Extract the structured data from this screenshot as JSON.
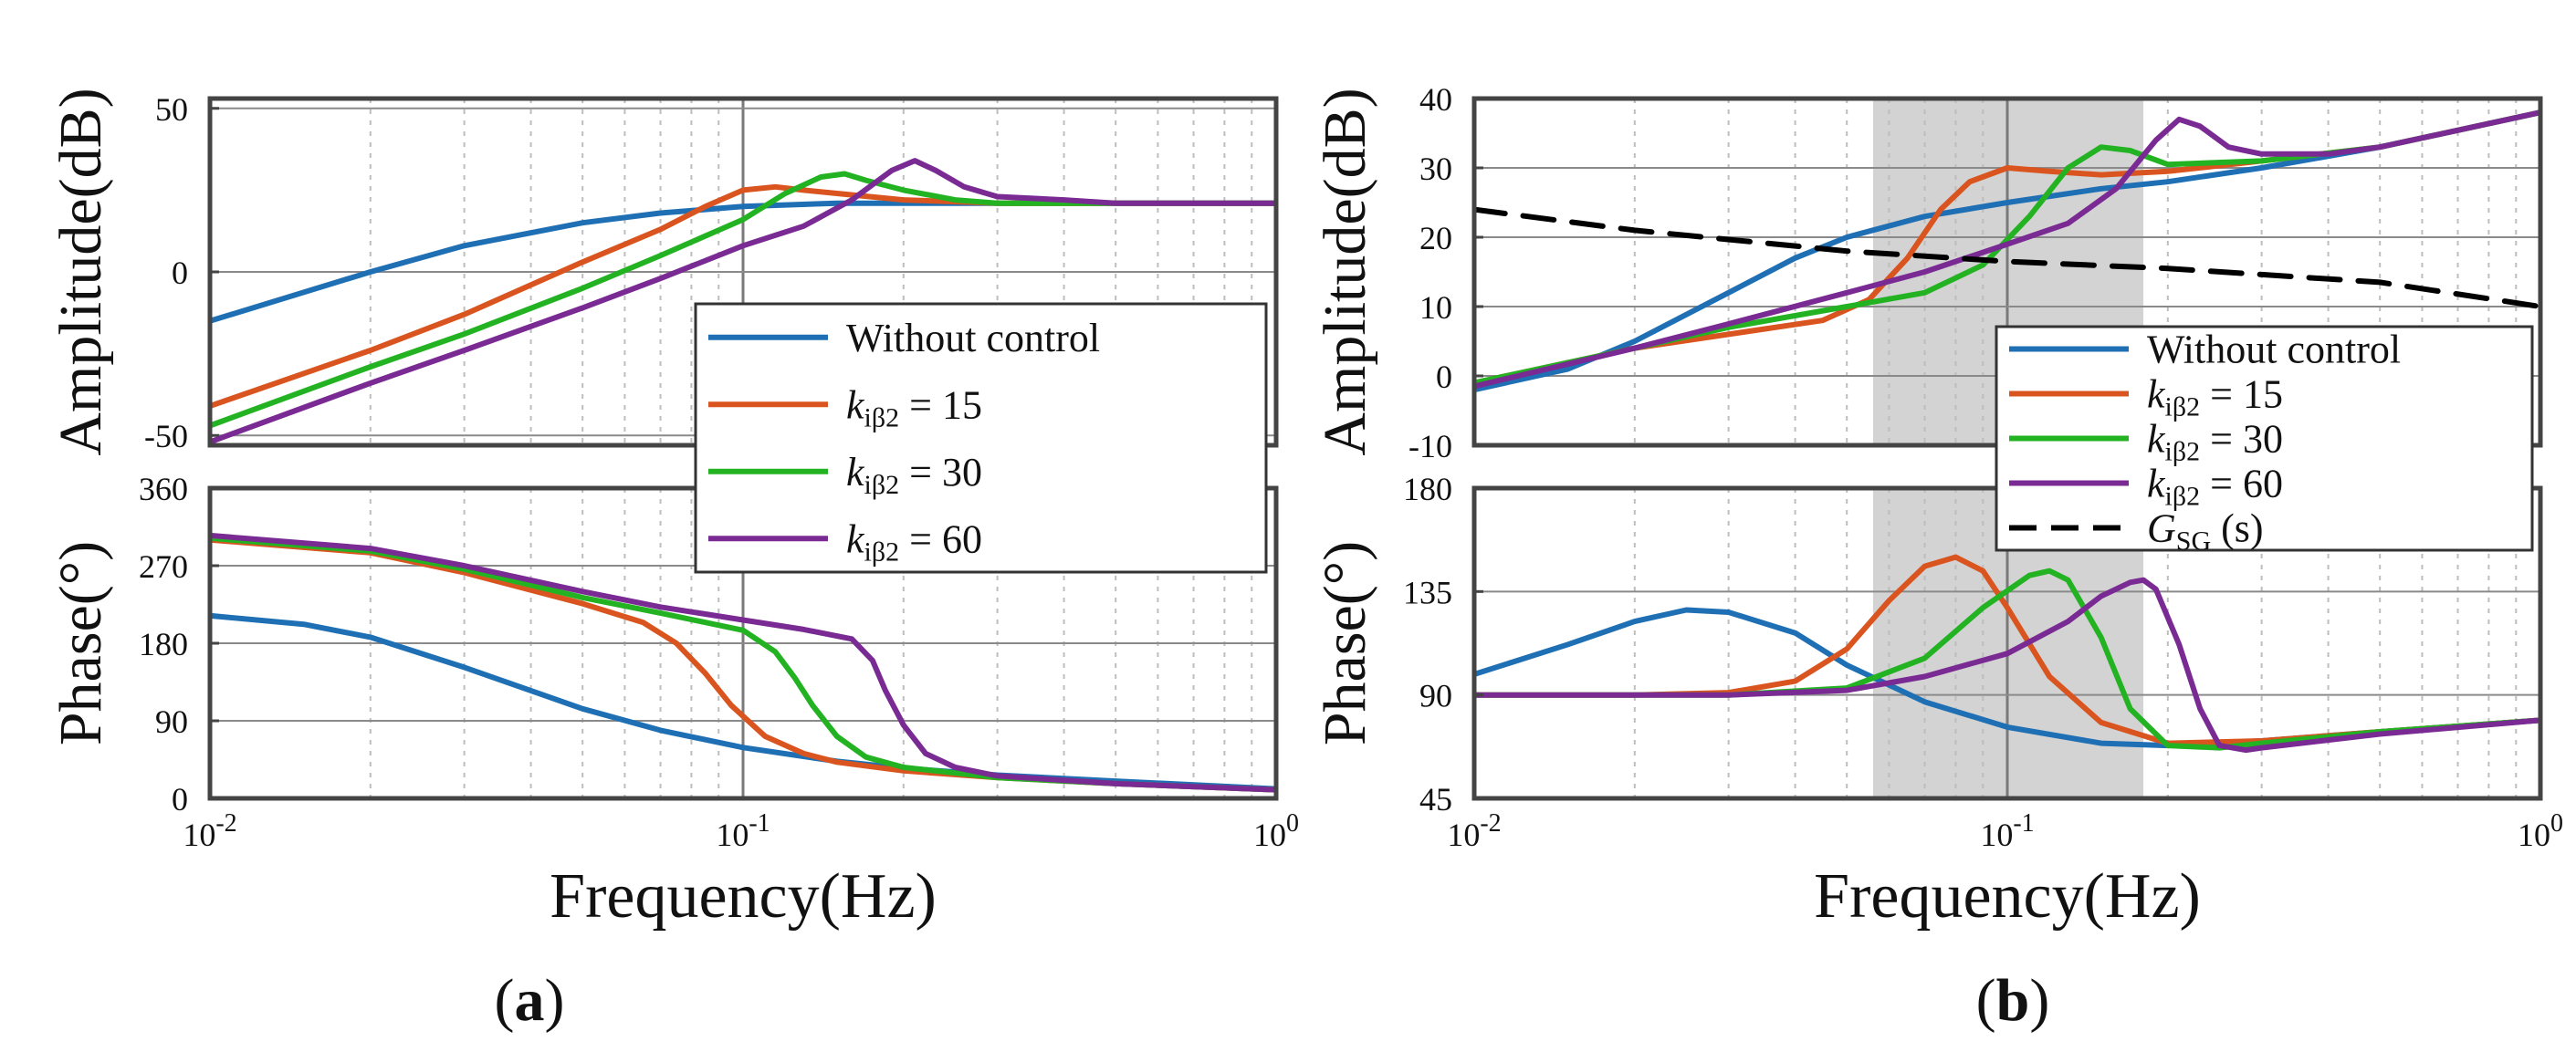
{
  "chart_data": [
    {
      "type": "line",
      "panel_label": "(a)",
      "xlabel": "Frequency(Hz)",
      "xscale": "log",
      "xlim": [
        0.01,
        1
      ],
      "xticklabels": [
        "10-2",
        "10-1",
        "100"
      ],
      "legend": {
        "position": "right-middle",
        "entries": [
          {
            "series": "Without control",
            "color": "#1f6fb4"
          },
          {
            "series": "kiβ2 = 15",
            "color": "#d9541e"
          },
          {
            "series": "kiβ2 = 30",
            "color": "#23b322"
          },
          {
            "series": "kiβ2 = 60",
            "color": "#7a2a93"
          }
        ]
      },
      "subplots": [
        {
          "id": "amplitude",
          "ylabel": "Amplitude(dB)",
          "ylim": [
            -53,
            53
          ],
          "yticks": [
            -50,
            0,
            50
          ],
          "yticklabels": [
            "-50",
            "0",
            "50"
          ],
          "series": [
            {
              "name": "Without control",
              "color": "#1f6fb4",
              "x": [
                0.01,
                0.02,
                0.03,
                0.05,
                0.07,
                0.1,
                0.15,
                0.2,
                0.3,
                0.5,
                1.0
              ],
              "y": [
                -15,
                0,
                8,
                15,
                18,
                20,
                21,
                21,
                21,
                21,
                21
              ]
            },
            {
              "name": "kiβ2 = 15",
              "color": "#d9541e",
              "x": [
                0.01,
                0.02,
                0.03,
                0.05,
                0.07,
                0.085,
                0.1,
                0.115,
                0.13,
                0.15,
                0.2,
                0.3,
                0.5,
                1.0
              ],
              "y": [
                -41,
                -24,
                -13,
                3,
                13,
                20,
                25,
                26,
                25,
                24,
                22,
                21,
                21,
                21
              ]
            },
            {
              "name": "kiβ2 = 30",
              "color": "#23b322",
              "x": [
                0.01,
                0.02,
                0.03,
                0.05,
                0.07,
                0.1,
                0.12,
                0.14,
                0.155,
                0.17,
                0.2,
                0.25,
                0.3,
                0.5,
                1.0
              ],
              "y": [
                -47,
                -29,
                -19,
                -5,
                5,
                16,
                24,
                29,
                30,
                28,
                25,
                22,
                21,
                21,
                21
              ]
            },
            {
              "name": "kiβ2 = 60",
              "color": "#7a2a93",
              "x": [
                0.01,
                0.02,
                0.03,
                0.05,
                0.07,
                0.1,
                0.13,
                0.16,
                0.19,
                0.21,
                0.23,
                0.26,
                0.3,
                0.4,
                0.5,
                1.0
              ],
              "y": [
                -52,
                -34,
                -24,
                -11,
                -2,
                8,
                14,
                22,
                31,
                34,
                31,
                26,
                23,
                22,
                21,
                21
              ]
            }
          ]
        },
        {
          "id": "phase",
          "ylabel": "Phase(°)",
          "ylim": [
            0,
            360
          ],
          "yticks": [
            0,
            90,
            180,
            270,
            360
          ],
          "yticklabels": [
            "0",
            "90",
            "180",
            "270",
            "360"
          ],
          "series": [
            {
              "name": "Without control",
              "color": "#1f6fb4",
              "x": [
                0.01,
                0.015,
                0.02,
                0.03,
                0.05,
                0.07,
                0.1,
                0.15,
                0.2,
                0.3,
                0.5,
                1.0
              ],
              "y": [
                212,
                202,
                187,
                152,
                104,
                79,
                59,
                43,
                35,
                27,
                20,
                11
              ]
            },
            {
              "name": "kiβ2 = 15",
              "color": "#d9541e",
              "x": [
                0.01,
                0.02,
                0.03,
                0.05,
                0.065,
                0.075,
                0.085,
                0.095,
                0.11,
                0.13,
                0.15,
                0.2,
                0.3,
                0.5,
                1.0
              ],
              "y": [
                300,
                285,
                262,
                226,
                204,
                180,
                145,
                108,
                72,
                52,
                42,
                32,
                24,
                17,
                10
              ]
            },
            {
              "name": "kiβ2 = 30",
              "color": "#23b322",
              "x": [
                0.01,
                0.02,
                0.03,
                0.05,
                0.07,
                0.1,
                0.115,
                0.125,
                0.135,
                0.15,
                0.17,
                0.2,
                0.3,
                0.5,
                1.0
              ],
              "y": [
                302,
                287,
                266,
                233,
                215,
                195,
                170,
                140,
                108,
                72,
                48,
                36,
                24,
                17,
                10
              ]
            },
            {
              "name": "kiβ2 = 60",
              "color": "#7a2a93",
              "x": [
                0.01,
                0.02,
                0.03,
                0.05,
                0.07,
                0.1,
                0.13,
                0.16,
                0.175,
                0.185,
                0.2,
                0.22,
                0.25,
                0.3,
                0.5,
                1.0
              ],
              "y": [
                305,
                290,
                270,
                240,
                222,
                207,
                196,
                185,
                160,
                125,
                85,
                52,
                36,
                26,
                17,
                10
              ]
            }
          ]
        }
      ]
    },
    {
      "type": "line",
      "panel_label": "(b)",
      "xlabel": "Frequency(Hz)",
      "xscale": "log",
      "xlim": [
        0.01,
        1
      ],
      "xticklabels": [
        "10-2",
        "10-1",
        "100"
      ],
      "shaded_band_hz": [
        0.056,
        0.18
      ],
      "legend": {
        "position": "right-middle",
        "entries": [
          {
            "series": "Without control",
            "color": "#1f6fb4"
          },
          {
            "series": "kiβ2 = 15",
            "color": "#d9541e"
          },
          {
            "series": "kiβ2 = 30",
            "color": "#23b322"
          },
          {
            "series": "kiβ2 = 60",
            "color": "#7a2a93"
          },
          {
            "series": "GSG (s)",
            "color": "#000000"
          }
        ]
      },
      "subplots": [
        {
          "id": "amplitude",
          "ylabel": "Amplitude(dB)",
          "ylim": [
            -10,
            40
          ],
          "yticks": [
            -10,
            0,
            10,
            20,
            30,
            40
          ],
          "yticklabels": [
            "-10",
            "0",
            "10",
            "20",
            "30",
            "40"
          ],
          "series": [
            {
              "name": "Without control",
              "color": "#1f6fb4",
              "x": [
                0.01,
                0.015,
                0.02,
                0.03,
                0.04,
                0.05,
                0.07,
                0.1,
                0.15,
                0.2,
                0.3,
                0.5,
                1.0
              ],
              "y": [
                -2,
                1,
                5,
                12,
                17,
                20,
                23,
                25,
                27,
                28,
                30,
                33,
                38
              ]
            },
            {
              "name": "kiβ2 = 15",
              "color": "#d9541e",
              "x": [
                0.01,
                0.02,
                0.03,
                0.045,
                0.055,
                0.065,
                0.075,
                0.085,
                0.1,
                0.12,
                0.15,
                0.2,
                0.3,
                0.5,
                1.0
              ],
              "y": [
                -1,
                4,
                6,
                8,
                11,
                17,
                24,
                28,
                30,
                29.5,
                29,
                29.5,
                31,
                33,
                38
              ]
            },
            {
              "name": "kiβ2 = 30",
              "color": "#23b322",
              "x": [
                0.01,
                0.02,
                0.03,
                0.05,
                0.07,
                0.09,
                0.11,
                0.13,
                0.15,
                0.17,
                0.2,
                0.3,
                0.5,
                1.0
              ],
              "y": [
                -1,
                4,
                7,
                10,
                12,
                16,
                23,
                30,
                33,
                32.5,
                30.5,
                31,
                33,
                38
              ]
            },
            {
              "name": "kiβ2 = 60",
              "color": "#7a2a93",
              "x": [
                0.01,
                0.02,
                0.03,
                0.05,
                0.07,
                0.1,
                0.13,
                0.16,
                0.19,
                0.21,
                0.23,
                0.26,
                0.3,
                0.4,
                0.5,
                1.0
              ],
              "y": [
                -1.5,
                4,
                7.5,
                12,
                15,
                19,
                22,
                27,
                34,
                37,
                36,
                33,
                32,
                32,
                33,
                38
              ]
            },
            {
              "name": "GSG (s)",
              "color": "#000000",
              "dashed": true,
              "x": [
                0.01,
                0.02,
                0.05,
                0.1,
                0.2,
                0.5,
                1.0
              ],
              "y": [
                24,
                21,
                18,
                16.5,
                15.5,
                13.5,
                10
              ]
            }
          ]
        },
        {
          "id": "phase",
          "ylabel": "Phase(°)",
          "ylim": [
            45,
            180
          ],
          "yticks": [
            45,
            90,
            135,
            180
          ],
          "yticklabels": [
            "45",
            "90",
            "135",
            "180"
          ],
          "series": [
            {
              "name": "Without control",
              "color": "#1f6fb4",
              "x": [
                0.01,
                0.015,
                0.02,
                0.025,
                0.03,
                0.04,
                0.05,
                0.07,
                0.1,
                0.15,
                0.2,
                0.3,
                0.5,
                1.0
              ],
              "y": [
                99,
                112,
                122,
                127,
                126,
                117,
                103,
                87,
                76,
                69,
                68,
                70,
                74,
                79
              ]
            },
            {
              "name": "kiβ2 = 15",
              "color": "#d9541e",
              "x": [
                0.01,
                0.02,
                0.03,
                0.04,
                0.05,
                0.06,
                0.07,
                0.08,
                0.09,
                0.1,
                0.12,
                0.15,
                0.2,
                0.3,
                0.5,
                1.0
              ],
              "y": [
                90,
                90,
                91,
                96,
                110,
                131,
                146,
                150,
                144,
                128,
                98,
                78,
                69,
                70,
                74,
                79
              ]
            },
            {
              "name": "kiβ2 = 30",
              "color": "#23b322",
              "x": [
                0.01,
                0.02,
                0.03,
                0.05,
                0.07,
                0.09,
                0.11,
                0.12,
                0.13,
                0.15,
                0.17,
                0.2,
                0.25,
                0.3,
                0.5,
                1.0
              ],
              "y": [
                90,
                90,
                90,
                93,
                106,
                128,
                142,
                144,
                140,
                115,
                84,
                68,
                67,
                69,
                74,
                79
              ]
            },
            {
              "name": "kiβ2 = 60",
              "color": "#7a2a93",
              "x": [
                0.01,
                0.02,
                0.03,
                0.05,
                0.07,
                0.1,
                0.13,
                0.15,
                0.17,
                0.18,
                0.19,
                0.21,
                0.23,
                0.25,
                0.28,
                0.3,
                0.5,
                1.0
              ],
              "y": [
                90,
                90,
                90,
                92,
                98,
                108,
                122,
                133,
                139,
                140,
                136,
                112,
                84,
                68,
                66,
                67,
                73,
                79
              ]
            }
          ]
        }
      ]
    }
  ]
}
